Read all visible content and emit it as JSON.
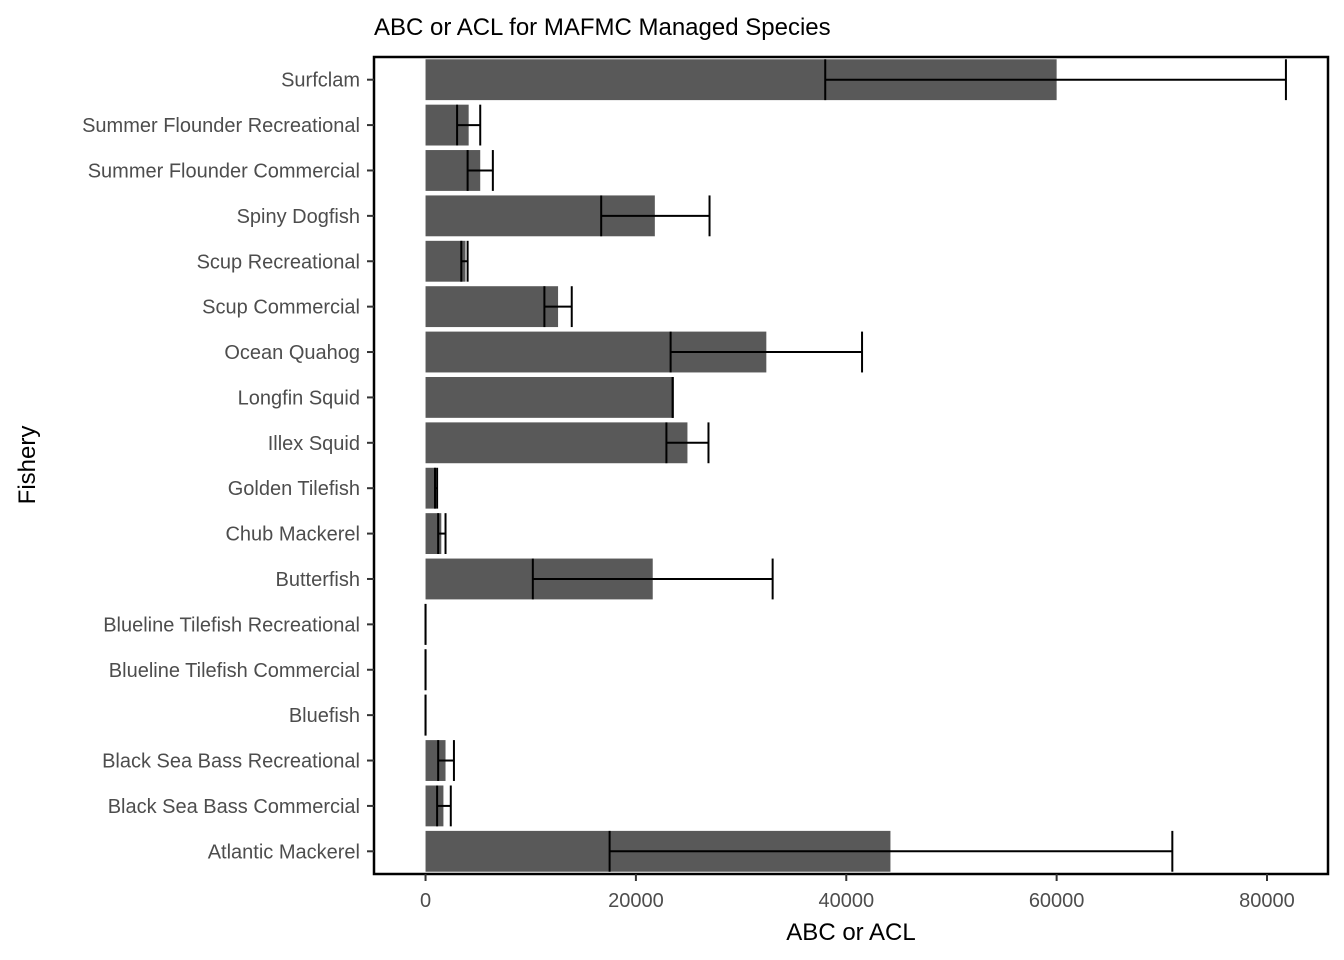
{
  "chart_data": {
    "type": "bar",
    "orientation": "horizontal",
    "title": "ABC or ACL for MAFMC Managed Species",
    "xlabel": "ABC or ACL",
    "ylabel": "Fishery",
    "xlim": [
      -4900,
      85800
    ],
    "xticks": [
      0,
      20000,
      40000,
      60000,
      80000
    ],
    "xtick_labels": [
      "0",
      "20000",
      "40000",
      "60000",
      "80000"
    ],
    "grid": false,
    "legend": "none",
    "bar_color": "#595959",
    "errorbar_color": "#000000",
    "categories": [
      "Atlantic Mackerel",
      "Black Sea Bass Commercial",
      "Black Sea Bass Recreational",
      "Bluefish",
      "Blueline Tilefish Commercial",
      "Blueline Tilefish Recreational",
      "Butterfish",
      "Chub Mackerel",
      "Golden Tilefish",
      "Illex Squid",
      "Longfin Squid",
      "Ocean Quahog",
      "Scup Commercial",
      "Scup Recreational",
      "Spiny Dogfish",
      "Summer Flounder Commercial",
      "Summer Flounder Recreational",
      "Surfclam"
    ],
    "values": [
      44200,
      1700,
      1900,
      0,
      0,
      0,
      21600,
      1500,
      1000,
      24900,
      23500,
      32400,
      12600,
      3800,
      21800,
      5200,
      4100,
      60000
    ],
    "error_low": [
      17500,
      1100,
      1200,
      0,
      0,
      0,
      10200,
      1200,
      900,
      22900,
      23500,
      23300,
      11300,
      3400,
      16700,
      4000,
      3000,
      38000
    ],
    "error_high": [
      71000,
      2400,
      2700,
      0,
      0,
      0,
      33000,
      1900,
      1100,
      26900,
      23500,
      41500,
      13900,
      4000,
      27000,
      6400,
      5200,
      81800
    ]
  }
}
